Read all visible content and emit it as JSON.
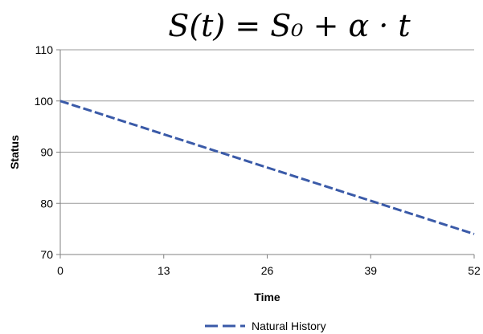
{
  "chart_data": {
    "type": "line",
    "title": "S(t) = S₀ + α · t",
    "xlabel": "Time",
    "ylabel": "Status",
    "xlim": [
      0,
      52
    ],
    "ylim": [
      70,
      110
    ],
    "x_ticks": [
      "0",
      "13",
      "26",
      "39",
      "52"
    ],
    "y_ticks": [
      "70",
      "80",
      "90",
      "100",
      "110"
    ],
    "grid": "horizontal",
    "legend_position": "bottom",
    "series": [
      {
        "name": "Natural History",
        "color": "#3a5aa8",
        "line_style": "dashed",
        "x": [
          0,
          52
        ],
        "y": [
          100,
          74
        ]
      }
    ]
  }
}
